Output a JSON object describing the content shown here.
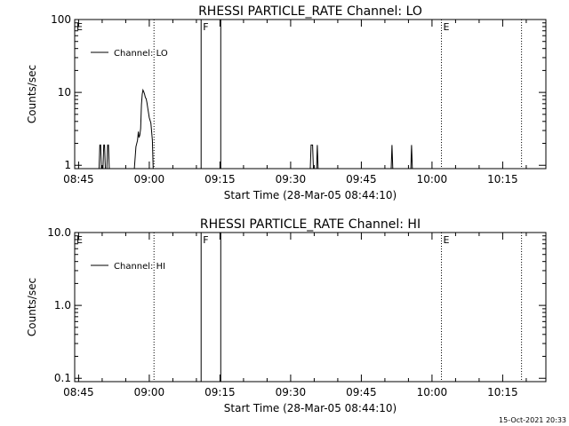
{
  "footer_timestamp": "15-Oct-2021 20:33",
  "chart_data": [
    {
      "type": "line",
      "title": "RHESSI PARTICLE_RATE Channel: LO",
      "xlabel": "Start Time (28-Mar-05 08:44:10)",
      "ylabel": "Counts/sec",
      "y_scale": "log",
      "xlim": [
        "08:44:10",
        "10:24:10"
      ],
      "ylim": [
        0.9,
        100
      ],
      "x_ticks": [
        "08:45",
        "09:00",
        "09:15",
        "09:30",
        "09:45",
        "10:00",
        "10:15"
      ],
      "y_ticks": [
        {
          "value": 1,
          "label": "1"
        },
        {
          "value": 10,
          "label": "10"
        },
        {
          "value": 100,
          "label": "100"
        }
      ],
      "legend": {
        "placement": "top-left",
        "label": "Channel: LO"
      },
      "markers": [
        {
          "label": "E",
          "time": "08:44:10",
          "style": "solid"
        },
        {
          "label": "",
          "time": "09:01:00",
          "style": "dotted"
        },
        {
          "label": "F",
          "time": "09:11:00",
          "style": "solid"
        },
        {
          "label": "",
          "time": "09:15:10",
          "style": "solid"
        },
        {
          "label": "E",
          "time": "10:02:00",
          "style": "dotted"
        },
        {
          "label": "",
          "time": "10:19:00",
          "style": "dotted"
        }
      ],
      "series": [
        {
          "name": "Channel: LO",
          "segments": [
            {
              "x": [
                "08:49:20",
                "08:49:30",
                "08:49:40",
                "08:49:50",
                "08:50:00"
              ],
              "y": [
                0.8,
                1.9,
                1.9,
                0.8,
                0.8
              ]
            },
            {
              "x": [
                "08:50:10",
                "08:50:20",
                "08:50:30",
                "08:50:40"
              ],
              "y": [
                0.8,
                1.9,
                1.9,
                0.8
              ]
            },
            {
              "x": [
                "08:51:00",
                "08:51:10",
                "08:51:20",
                "08:51:30"
              ],
              "y": [
                0.8,
                1.9,
                1.9,
                0.8
              ]
            },
            {
              "x": [
                "08:56:50",
                "08:57:10",
                "08:57:30",
                "08:57:40",
                "08:57:50",
                "08:58:00",
                "08:58:10",
                "08:58:20",
                "08:58:30",
                "08:58:40",
                "08:58:50",
                "08:59:00",
                "08:59:10",
                "08:59:20",
                "08:59:30",
                "08:59:40",
                "08:59:50",
                "09:00:00",
                "09:00:20",
                "09:00:40",
                "09:00:50"
              ],
              "y": [
                0.8,
                1.8,
                2.2,
                2.9,
                2.4,
                2.6,
                3.2,
                6.8,
                9.5,
                10.8,
                10.2,
                9.5,
                8.5,
                8.2,
                7.2,
                6.1,
                5.3,
                4.5,
                3.8,
                2.2,
                0.8
              ]
            },
            {
              "x": [
                "09:34:10",
                "09:34:20",
                "09:34:40",
                "09:34:50"
              ],
              "y": [
                0.8,
                1.9,
                1.9,
                0.8
              ]
            },
            {
              "x": [
                "09:35:30",
                "09:35:40",
                "09:35:50"
              ],
              "y": [
                0.8,
                1.9,
                0.8
              ]
            },
            {
              "x": [
                "09:51:20",
                "09:51:30",
                "09:51:40"
              ],
              "y": [
                0.8,
                1.9,
                0.8
              ]
            },
            {
              "x": [
                "09:55:30",
                "09:55:40",
                "09:55:50"
              ],
              "y": [
                0.8,
                1.9,
                0.8
              ]
            }
          ]
        }
      ]
    },
    {
      "type": "line",
      "title": "RHESSI PARTICLE_RATE Channel: HI",
      "xlabel": "Start Time (28-Mar-05 08:44:10)",
      "ylabel": "Counts/sec",
      "y_scale": "log",
      "xlim": [
        "08:44:10",
        "10:24:10"
      ],
      "ylim": [
        0.09,
        10
      ],
      "x_ticks": [
        "08:45",
        "09:00",
        "09:15",
        "09:30",
        "09:45",
        "10:00",
        "10:15"
      ],
      "y_ticks": [
        {
          "value": 0.1,
          "label": "0.1"
        },
        {
          "value": 1,
          "label": "1.0"
        },
        {
          "value": 10,
          "label": "10.0"
        }
      ],
      "legend": {
        "placement": "top-left",
        "label": "Channel: HI"
      },
      "markers": [
        {
          "label": "E",
          "time": "08:44:10",
          "style": "solid"
        },
        {
          "label": "",
          "time": "09:01:00",
          "style": "dotted"
        },
        {
          "label": "F",
          "time": "09:11:00",
          "style": "solid"
        },
        {
          "label": "",
          "time": "09:15:10",
          "style": "solid"
        },
        {
          "label": "E",
          "time": "10:02:00",
          "style": "dotted"
        },
        {
          "label": "",
          "time": "10:19:00",
          "style": "dotted"
        }
      ],
      "series": [
        {
          "name": "Channel: HI",
          "segments": []
        }
      ]
    }
  ]
}
